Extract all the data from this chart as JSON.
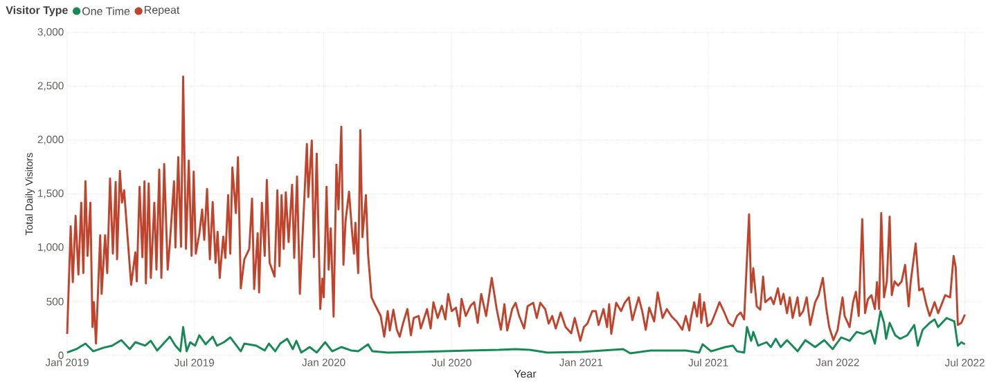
{
  "chart_data": {
    "type": "line",
    "xlabel": "Year",
    "ylabel": "Total Daily Visitors",
    "legend_title": "Visitor Type",
    "legend": "top left",
    "grid": true,
    "line_style": "solid",
    "marker": "none",
    "xlim": [
      "2019-01-01",
      "2022-07-27"
    ],
    "xticks": [
      {
        "value": "2019-01-01",
        "label": "Jan 2019"
      },
      {
        "value": "2019-07-01",
        "label": "Jul 2019"
      },
      {
        "value": "2020-01-01",
        "label": "Jan 2020"
      },
      {
        "value": "2020-07-01",
        "label": "Jul 2020"
      },
      {
        "value": "2021-01-01",
        "label": "Jan 2021"
      },
      {
        "value": "2021-07-01",
        "label": "Jul 2021"
      },
      {
        "value": "2022-01-01",
        "label": "Jan 2022"
      },
      {
        "value": "2022-07-01",
        "label": "Jul 2022"
      }
    ],
    "ylim": [
      0,
      3000
    ],
    "yticks": [
      0,
      500,
      {
        "value": 1000,
        "label": "1,000"
      },
      {
        "value": 1500,
        "label": "1,500"
      },
      {
        "value": 2000,
        "label": "2,000"
      },
      {
        "value": 2500,
        "label": "2,500"
      },
      {
        "value": 3000,
        "label": "3,000"
      }
    ],
    "series": [
      {
        "name": "One Time",
        "color": "#168a55",
        "x": [
          "2019-01-01",
          "2019-01-14",
          "2019-01-27",
          "2019-02-07",
          "2019-02-22",
          "2019-03-06",
          "2019-03-19",
          "2019-03-31",
          "2019-04-08",
          "2019-04-22",
          "2019-04-30",
          "2019-05-09",
          "2019-05-27",
          "2019-06-04",
          "2019-06-11",
          "2019-06-15",
          "2019-06-20",
          "2019-06-25",
          "2019-07-02",
          "2019-07-08",
          "2019-07-17",
          "2019-07-27",
          "2019-08-02",
          "2019-08-12",
          "2019-08-21",
          "2019-09-05",
          "2019-09-10",
          "2019-09-27",
          "2019-10-09",
          "2019-10-15",
          "2019-10-24",
          "2019-10-31",
          "2019-11-10",
          "2019-11-18",
          "2019-11-23",
          "2019-11-30",
          "2019-12-12",
          "2019-12-22",
          "2020-01-03",
          "2020-01-13",
          "2020-01-26",
          "2020-02-09",
          "2020-02-19",
          "2020-03-04",
          "2020-03-10",
          "2020-04-01",
          "2020-05-17",
          "2020-07-25",
          "2020-09-06",
          "2020-09-30",
          "2020-10-20",
          "2020-11-14",
          "2021-01-02",
          "2021-03-02",
          "2021-03-12",
          "2021-04-10",
          "2021-05-13",
          "2021-05-30",
          "2021-06-18",
          "2021-06-23",
          "2021-07-05",
          "2021-07-25",
          "2021-08-05",
          "2021-08-11",
          "2021-08-21",
          "2021-08-25",
          "2021-08-31",
          "2021-09-03",
          "2021-09-10",
          "2021-09-22",
          "2021-09-28",
          "2021-10-05",
          "2021-10-12",
          "2021-10-21",
          "2021-11-05",
          "2021-11-16",
          "2021-11-30",
          "2021-12-13",
          "2021-12-25",
          "2022-01-06",
          "2022-01-18",
          "2022-01-28",
          "2022-02-07",
          "2022-02-17",
          "2022-02-23",
          "2022-03-03",
          "2022-03-08",
          "2022-03-11",
          "2022-03-16",
          "2022-03-24",
          "2022-03-31",
          "2022-04-10",
          "2022-04-20",
          "2022-04-25",
          "2022-05-02",
          "2022-05-12",
          "2022-05-19",
          "2022-05-24",
          "2022-06-05",
          "2022-06-16",
          "2022-06-21",
          "2022-06-26",
          "2022-07-01"
        ],
        "values": [
          26,
          58,
          109,
          38,
          71,
          90,
          141,
          58,
          122,
          90,
          135,
          45,
          173,
          90,
          38,
          263,
          38,
          122,
          90,
          186,
          103,
          173,
          90,
          122,
          167,
          38,
          109,
          90,
          45,
          109,
          38,
          109,
          154,
          58,
          135,
          26,
          77,
          26,
          122,
          38,
          77,
          45,
          38,
          103,
          38,
          26,
          32,
          45,
          51,
          58,
          51,
          26,
          32,
          58,
          19,
          45,
          45,
          45,
          26,
          103,
          38,
          77,
          90,
          38,
          26,
          263,
          135,
          218,
          90,
          122,
          77,
          154,
          77,
          141,
          38,
          141,
          77,
          141,
          58,
          167,
          135,
          218,
          199,
          231,
          109,
          411,
          302,
          154,
          302,
          186,
          154,
          186,
          282,
          90,
          238,
          302,
          334,
          263,
          347,
          315,
          90,
          122,
          103
        ]
      },
      {
        "name": "Repeat",
        "color": "#c1432b",
        "x": [
          "2019-01-01",
          "2019-01-06",
          "2019-01-09",
          "2019-01-13",
          "2019-01-17",
          "2019-01-21",
          "2019-01-24",
          "2019-01-27",
          "2019-01-30",
          "2019-02-03",
          "2019-02-06",
          "2019-02-08",
          "2019-02-11",
          "2019-02-17",
          "2019-02-19",
          "2019-02-24",
          "2019-02-27",
          "2019-03-03",
          "2019-03-07",
          "2019-03-11",
          "2019-03-13",
          "2019-03-17",
          "2019-03-20",
          "2019-03-23",
          "2019-04-02",
          "2019-04-08",
          "2019-04-10",
          "2019-04-14",
          "2019-04-18",
          "2019-04-21",
          "2019-04-23",
          "2019-04-27",
          "2019-04-30",
          "2019-05-05",
          "2019-05-08",
          "2019-05-12",
          "2019-05-15",
          "2019-05-19",
          "2019-05-24",
          "2019-05-27",
          "2019-06-02",
          "2019-06-04",
          "2019-06-08",
          "2019-06-12",
          "2019-06-15",
          "2019-06-19",
          "2019-06-23",
          "2019-06-27",
          "2019-06-30",
          "2019-07-03",
          "2019-07-08",
          "2019-07-12",
          "2019-07-15",
          "2019-07-19",
          "2019-07-23",
          "2019-07-27",
          "2019-07-31",
          "2019-08-03",
          "2019-08-06",
          "2019-08-11",
          "2019-08-14",
          "2019-08-18",
          "2019-08-21",
          "2019-08-24",
          "2019-08-29",
          "2019-09-01",
          "2019-09-05",
          "2019-09-10",
          "2019-09-17",
          "2019-09-21",
          "2019-09-24",
          "2019-09-29",
          "2019-10-01",
          "2019-10-05",
          "2019-10-09",
          "2019-10-12",
          "2019-10-16",
          "2019-10-23",
          "2019-10-27",
          "2019-10-30",
          "2019-11-02",
          "2019-11-05",
          "2019-11-08",
          "2019-11-12",
          "2019-11-17",
          "2019-11-20",
          "2019-11-24",
          "2019-11-28",
          "2019-12-08",
          "2019-12-10",
          "2019-12-15",
          "2019-12-18",
          "2019-12-22",
          "2019-12-27",
          "2019-12-30",
          "2020-01-01",
          "2020-01-05",
          "2020-01-08",
          "2020-01-11",
          "2020-01-15",
          "2020-01-19",
          "2020-01-22",
          "2020-01-26",
          "2020-01-29",
          "2020-02-01",
          "2020-02-06",
          "2020-02-10",
          "2020-02-13",
          "2020-02-15",
          "2020-02-19",
          "2020-02-22",
          "2020-02-25",
          "2020-03-01",
          "2020-03-04",
          "2020-03-09",
          "2020-03-15",
          "2020-03-22",
          "2020-03-27",
          "2020-04-01",
          "2020-04-04",
          "2020-04-09",
          "2020-04-14",
          "2020-04-18",
          "2020-04-23",
          "2020-04-29",
          "2020-05-04",
          "2020-05-08",
          "2020-05-15",
          "2020-05-18",
          "2020-05-27",
          "2020-06-01",
          "2020-06-05",
          "2020-06-11",
          "2020-06-17",
          "2020-06-22",
          "2020-06-26",
          "2020-07-01",
          "2020-07-07",
          "2020-07-12",
          "2020-07-15",
          "2020-07-21",
          "2020-07-28",
          "2020-08-02",
          "2020-08-07",
          "2020-08-12",
          "2020-08-19",
          "2020-08-27",
          "2020-09-03",
          "2020-09-09",
          "2020-09-14",
          "2020-09-18",
          "2020-09-25",
          "2020-09-30",
          "2020-10-05",
          "2020-10-12",
          "2020-10-17",
          "2020-10-25",
          "2020-10-30",
          "2020-11-04",
          "2020-11-11",
          "2020-11-16",
          "2020-11-21",
          "2020-11-26",
          "2020-12-03",
          "2020-12-10",
          "2020-12-18",
          "2020-12-23",
          "2020-12-31",
          "2021-01-05",
          "2021-01-10",
          "2021-01-17",
          "2021-01-22",
          "2021-01-26",
          "2021-02-02",
          "2021-02-07",
          "2021-02-10",
          "2021-02-13",
          "2021-02-20",
          "2021-02-27",
          "2021-03-04",
          "2021-03-10",
          "2021-03-15",
          "2021-03-24",
          "2021-03-29",
          "2021-04-03",
          "2021-04-08",
          "2021-04-15",
          "2021-04-20",
          "2021-04-27",
          "2021-05-03",
          "2021-05-10",
          "2021-05-17",
          "2021-05-25",
          "2021-05-30",
          "2021-06-04",
          "2021-06-06",
          "2021-06-11",
          "2021-06-15",
          "2021-06-19",
          "2021-06-21",
          "2021-06-25",
          "2021-06-30",
          "2021-07-05",
          "2021-07-11",
          "2021-07-17",
          "2021-07-23",
          "2021-07-30",
          "2021-08-05",
          "2021-08-11",
          "2021-08-16",
          "2021-08-21",
          "2021-08-28",
          "2021-08-31",
          "2021-09-03",
          "2021-09-08",
          "2021-09-13",
          "2021-09-17",
          "2021-09-20",
          "2021-09-28",
          "2021-10-02",
          "2021-10-08",
          "2021-10-12",
          "2021-10-16",
          "2021-10-21",
          "2021-10-25",
          "2021-10-29",
          "2021-11-05",
          "2021-11-08",
          "2021-11-13",
          "2021-11-18",
          "2021-11-23",
          "2021-11-30",
          "2021-12-05",
          "2021-12-11",
          "2021-12-16",
          "2021-12-20",
          "2021-12-26",
          "2022-01-01",
          "2022-01-04",
          "2022-01-08",
          "2022-01-11",
          "2022-01-18",
          "2022-01-23",
          "2022-01-27",
          "2022-01-31",
          "2022-02-05",
          "2022-02-09",
          "2022-02-13",
          "2022-02-18",
          "2022-02-23",
          "2022-02-26",
          "2022-03-01",
          "2022-03-04",
          "2022-03-08",
          "2022-03-12",
          "2022-03-16",
          "2022-03-19",
          "2022-03-23",
          "2022-03-28",
          "2022-04-02",
          "2022-04-07",
          "2022-04-12",
          "2022-04-15",
          "2022-04-22",
          "2022-04-27",
          "2022-05-02",
          "2022-05-07",
          "2022-05-12",
          "2022-05-19",
          "2022-05-24",
          "2022-05-29",
          "2022-06-03",
          "2022-06-10",
          "2022-06-15",
          "2022-06-18",
          "2022-06-21",
          "2022-06-26",
          "2022-07-01"
        ],
        "values": [
          199,
          1200,
          680,
          1297,
          751,
          1419,
          764,
          1618,
          924,
          1419,
          263,
          494,
          109,
          1117,
          571,
          1117,
          764,
          1643,
          944,
          1611,
          892,
          1714,
          1419,
          1534,
          655,
          957,
          687,
          1566,
          912,
          1618,
          668,
          1598,
          719,
          1419,
          796,
          1727,
          719,
          1778,
          796,
          1034,
          1618,
          1002,
          1842,
          1008,
          2590,
          989,
          1810,
          924,
          1708,
          944,
          1130,
          1355,
          1072,
          1547,
          892,
          1425,
          860,
          1149,
          719,
          1104,
          905,
          1489,
          944,
          1746,
          1322,
          1842,
          623,
          892,
          989,
          1457,
          616,
          1136,
          584,
          1419,
          924,
          1630,
          860,
          732,
          1534,
          828,
          1489,
          989,
          1515,
          1053,
          1586,
          905,
          1663,
          571,
          1964,
          1470,
          1997,
          912,
          1875,
          430,
          713,
          539,
          1566,
          796,
          1181,
          360,
          1772,
          1355,
          2125,
          841,
          1245,
          1521,
          1168,
          944,
          1232,
          764,
          2093,
          1098,
          1489,
          944,
          539,
          456,
          366,
          173,
          411,
          231,
          424,
          238,
          173,
          302,
          430,
          186,
          347,
          366,
          250,
          430,
          250,
          494,
          347,
          462,
          334,
          571,
          411,
          443,
          270,
          526,
          366,
          462,
          494,
          302,
          571,
          366,
          719,
          430,
          238,
          475,
          231,
          430,
          488,
          366,
          250,
          456,
          488,
          347,
          488,
          430,
          295,
          366,
          250,
          398,
          263,
          205,
          347,
          135,
          263,
          295,
          411,
          411,
          282,
          430,
          263,
          475,
          199,
          488,
          411,
          488,
          539,
          327,
          539,
          411,
          238,
          443,
          315,
          584,
          347,
          430,
          360,
          315,
          238,
          366,
          231,
          334,
          494,
          360,
          571,
          302,
          494,
          270,
          295,
          392,
          494,
          411,
          302,
          270,
          366,
          398,
          334,
          1310,
          584,
          809,
          456,
          424,
          732,
          494,
          539,
          475,
          623,
          475,
          571,
          392,
          539,
          347,
          539,
          366,
          411,
          539,
          282,
          494,
          559,
          719,
          430,
          263,
          141,
          238,
          366,
          539,
          366,
          263,
          494,
          591,
          366,
          1265,
          392,
          520,
          559,
          430,
          681,
          430,
          1322,
          539,
          687,
          1290,
          559,
          687,
          648,
          687,
          841,
          456,
          687,
          1040,
          603,
          623,
          475,
          366,
          494,
          392,
          475,
          559,
          539,
          924,
          815,
          282,
          302,
          379
        ]
      }
    ]
  }
}
